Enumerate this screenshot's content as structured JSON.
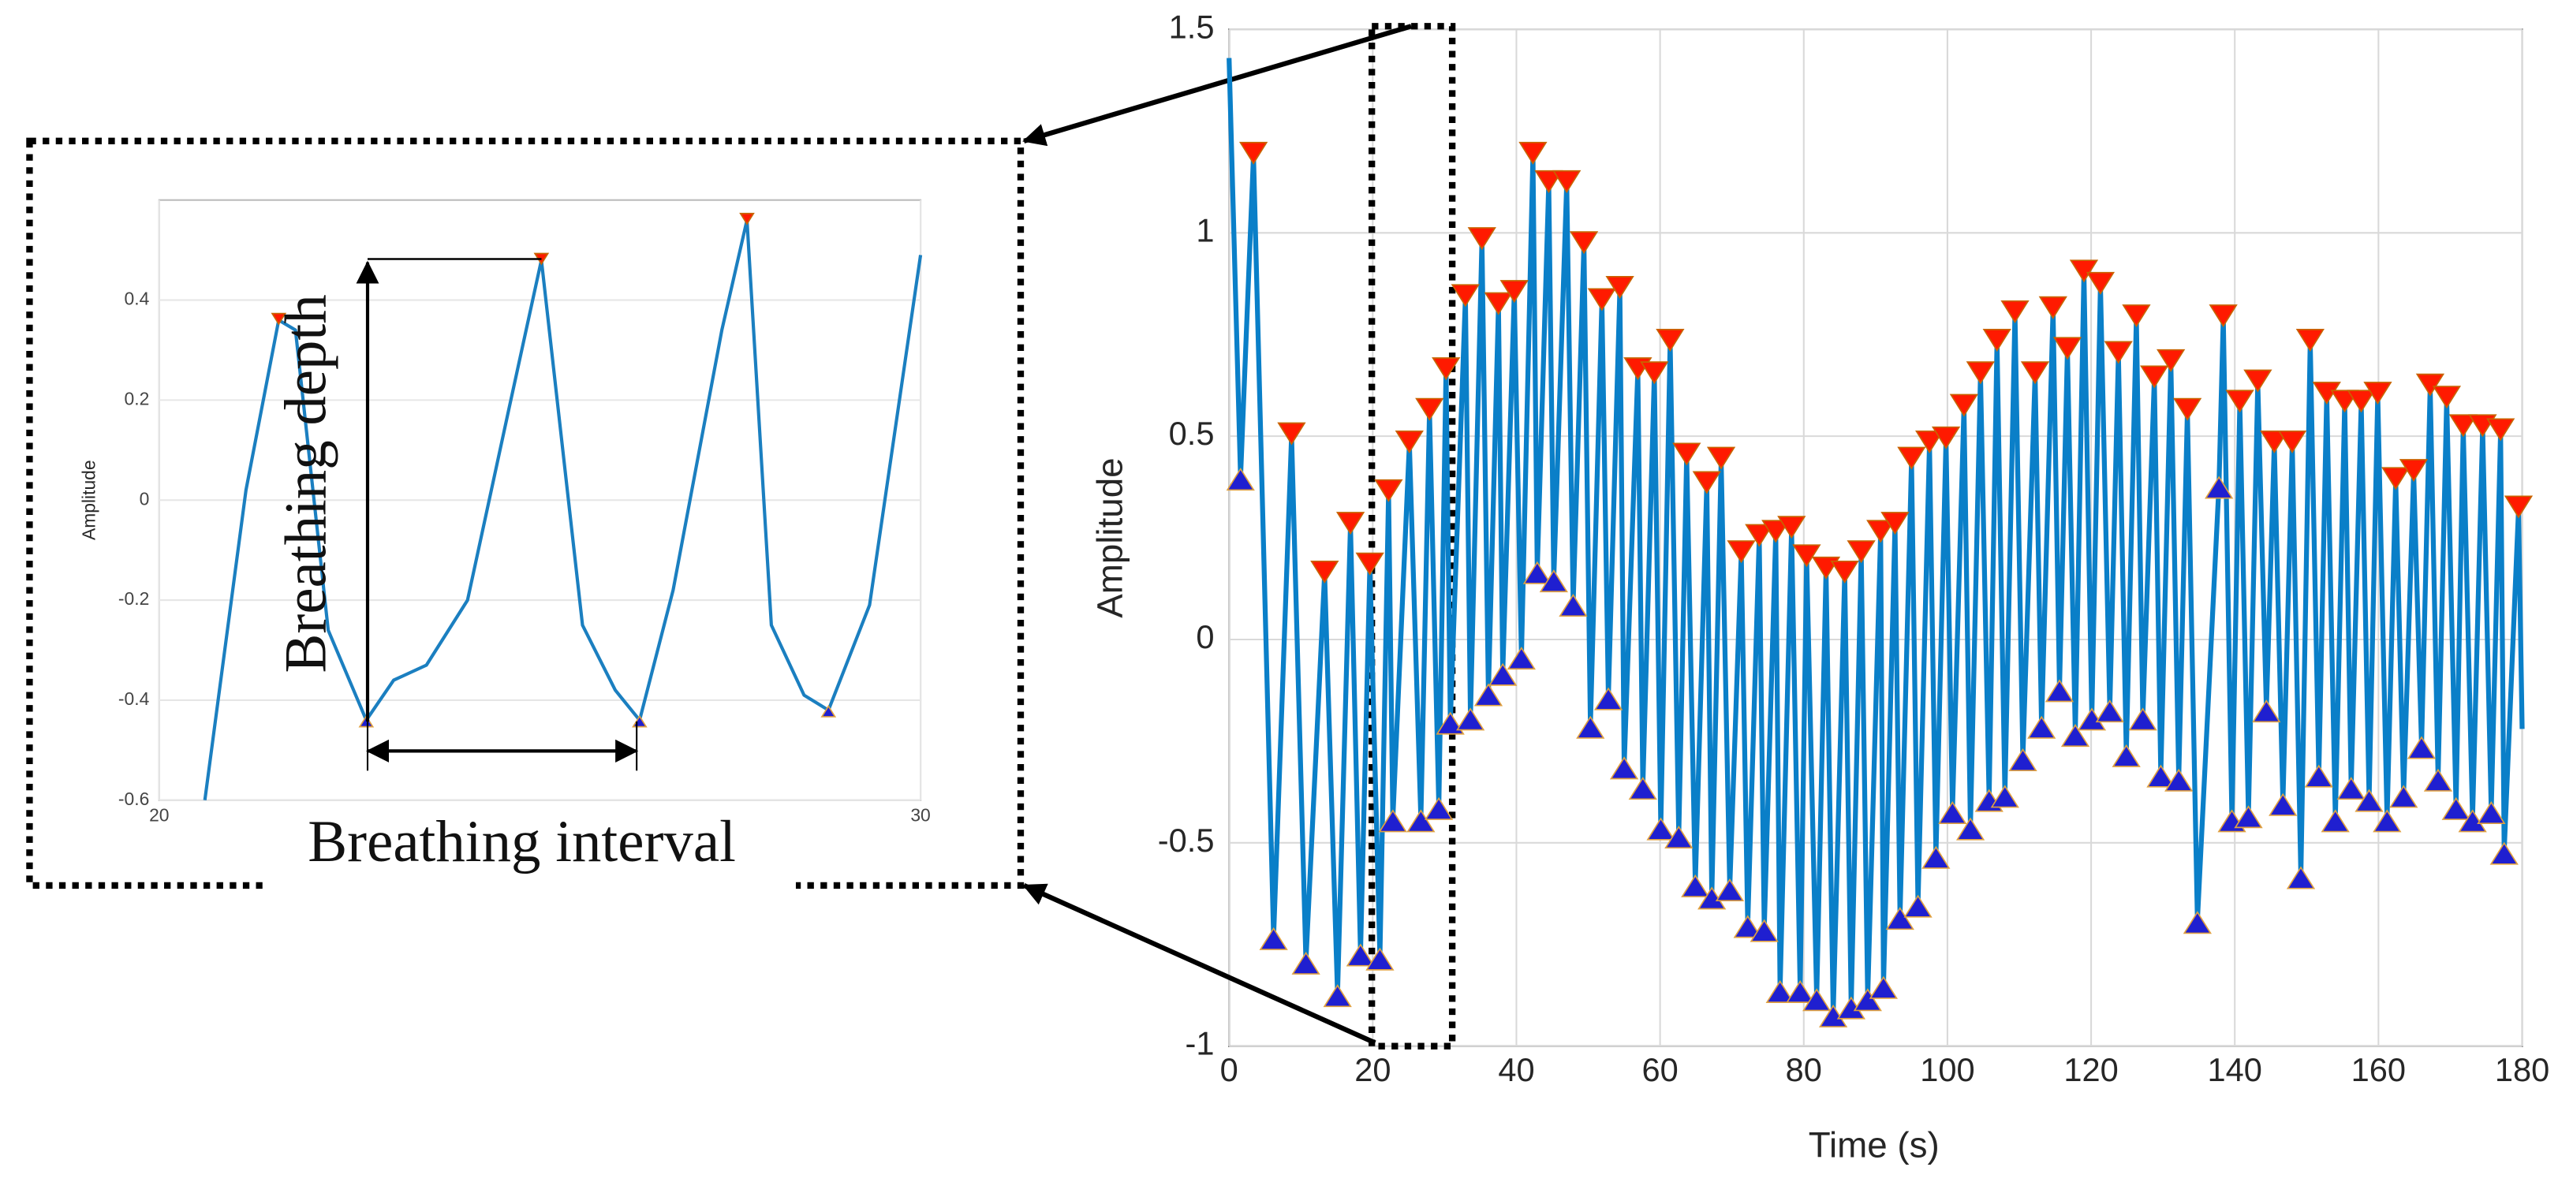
{
  "chart_data": [
    {
      "type": "line",
      "xlabel": "Time (s)",
      "ylabel": "Amplitude",
      "xlim": [
        0,
        180
      ],
      "ylim": [
        -1,
        1.5
      ],
      "xticks": [
        0,
        20,
        40,
        60,
        80,
        100,
        120,
        140,
        160,
        180
      ],
      "yticks": [
        -1,
        -0.5,
        0,
        0.5,
        1,
        1.5
      ],
      "grid": true,
      "series": [
        {
          "color": "#0a7fc8",
          "x": [
            0,
            1.6,
            3.4,
            6.2,
            8.7,
            10.7,
            13.3,
            15.1,
            16.9,
            18.3,
            19.6,
            21.0,
            22.2,
            22.8,
            25.1,
            26.7,
            27.9,
            29.2,
            30.2,
            30.8,
            32.9,
            33.6,
            35.2,
            36.1,
            37.5,
            38.1,
            39.7,
            40.7,
            42.3,
            42.9,
            44.5,
            45.2,
            47.0,
            47.9,
            49.4,
            50.3,
            51.9,
            52.8,
            54.4,
            55.0,
            56.9,
            57.6,
            59.2,
            60.1,
            61.4,
            62.6,
            63.7,
            64.9,
            66.5,
            67.2,
            68.5,
            69.7,
            71.3,
            72.2,
            73.8,
            74.5,
            76.1,
            76.7,
            78.3,
            79.5,
            80.4,
            81.8,
            83.1,
            84.1,
            85.7,
            86.6,
            88.0,
            88.9,
            90.7,
            91.1,
            92.7,
            93.4,
            95.0,
            95.9,
            97.5,
            98.4,
            99.8,
            100.7,
            102.3,
            103.2,
            104.6,
            105.8,
            106.9,
            108.0,
            109.4,
            110.5,
            112.2,
            113.1,
            114.7,
            115.6,
            116.7,
            117.8,
            119.0,
            120.1,
            121.3,
            122.6,
            123.8,
            124.9,
            126.3,
            127.2,
            128.8,
            129.7,
            131.1,
            132.2,
            133.4,
            134.8,
            137.8,
            138.4,
            139.6,
            140.7,
            141.9,
            143.2,
            144.4,
            145.5,
            146.7,
            148.0,
            149.2,
            150.5,
            151.7,
            152.8,
            154.0,
            155.3,
            156.2,
            157.6,
            158.7,
            159.9,
            161.2,
            162.4,
            163.5,
            164.9,
            166.0,
            167.2,
            168.3,
            169.5,
            170.8,
            171.8,
            173.1,
            174.5,
            175.7,
            177.0,
            177.5,
            179.5,
            180
          ],
          "values": [
            1.43,
            0.4,
            1.19,
            -0.73,
            0.5,
            -0.79,
            0.16,
            -0.87,
            0.28,
            -0.77,
            0.18,
            -0.78,
            0.36,
            -0.44,
            0.48,
            -0.44,
            0.56,
            -0.41,
            0.66,
            -0.2,
            0.84,
            -0.19,
            0.98,
            -0.13,
            0.82,
            -0.08,
            0.85,
            -0.04,
            1.19,
            0.17,
            1.12,
            0.15,
            1.12,
            0.09,
            0.97,
            -0.21,
            0.83,
            -0.14,
            0.86,
            -0.31,
            0.66,
            -0.36,
            0.65,
            -0.46,
            0.73,
            -0.48,
            0.45,
            -0.6,
            0.38,
            -0.63,
            0.44,
            -0.61,
            0.21,
            -0.7,
            0.25,
            -0.71,
            0.26,
            -0.86,
            0.27,
            -0.86,
            0.2,
            -0.88,
            0.17,
            -0.92,
            0.16,
            -0.9,
            0.21,
            -0.88,
            0.26,
            -0.85,
            0.28,
            -0.68,
            0.44,
            -0.65,
            0.48,
            -0.53,
            0.49,
            -0.42,
            0.57,
            -0.46,
            0.65,
            -0.39,
            0.73,
            -0.38,
            0.8,
            -0.29,
            0.65,
            -0.21,
            0.81,
            -0.12,
            0.71,
            -0.23,
            0.9,
            -0.19,
            0.87,
            -0.17,
            0.7,
            -0.28,
            0.79,
            -0.19,
            0.64,
            -0.33,
            0.68,
            -0.34,
            0.56,
            -0.69,
            0.38,
            0.79,
            -0.44,
            0.58,
            -0.43,
            0.63,
            -0.17,
            0.48,
            -0.4,
            0.48,
            -0.58,
            0.73,
            -0.33,
            0.6,
            -0.44,
            0.58,
            -0.36,
            0.58,
            -0.39,
            0.6,
            -0.44,
            0.39,
            -0.38,
            0.41,
            -0.26,
            0.62,
            -0.34,
            0.59,
            -0.41,
            0.52,
            -0.44,
            0.52,
            -0.42,
            0.51,
            -0.52,
            0.32,
            -0.22
          ]
        },
        {
          "marker": "triangle-down",
          "color": "#ff1a00",
          "x": [
            3.4,
            8.7,
            13.3,
            16.9,
            19.6,
            22.2,
            25.1,
            27.9,
            30.2,
            32.9,
            35.2,
            37.5,
            39.7,
            42.3,
            44.5,
            47.0,
            49.4,
            51.9,
            54.4,
            56.9,
            59.2,
            61.4,
            63.7,
            66.5,
            68.5,
            71.3,
            73.8,
            76.1,
            78.3,
            80.4,
            83.1,
            85.7,
            88.0,
            90.7,
            92.7,
            95.0,
            97.5,
            99.8,
            102.3,
            104.6,
            106.9,
            109.4,
            112.2,
            114.7,
            116.7,
            119.0,
            121.3,
            123.8,
            126.3,
            128.8,
            131.1,
            133.4,
            138.4,
            140.7,
            143.2,
            145.5,
            148.0,
            150.5,
            152.8,
            155.3,
            157.6,
            159.9,
            162.4,
            164.9,
            167.2,
            169.5,
            171.8,
            174.5,
            177.0,
            179.5
          ],
          "values": [
            1.19,
            0.5,
            0.16,
            0.28,
            0.18,
            0.36,
            0.48,
            0.56,
            0.66,
            0.84,
            0.98,
            0.82,
            0.85,
            1.19,
            1.12,
            1.12,
            0.97,
            0.83,
            0.86,
            0.66,
            0.65,
            0.73,
            0.45,
            0.38,
            0.44,
            0.21,
            0.25,
            0.26,
            0.27,
            0.2,
            0.17,
            0.16,
            0.21,
            0.26,
            0.28,
            0.44,
            0.48,
            0.49,
            0.57,
            0.65,
            0.73,
            0.8,
            0.65,
            0.81,
            0.71,
            0.9,
            0.87,
            0.7,
            0.79,
            0.64,
            0.68,
            0.56,
            0.79,
            0.58,
            0.63,
            0.48,
            0.48,
            0.73,
            0.6,
            0.58,
            0.58,
            0.6,
            0.39,
            0.41,
            0.62,
            0.59,
            0.52,
            0.52,
            0.51,
            0.32
          ]
        },
        {
          "marker": "triangle-up",
          "color": "#1f1fd0",
          "x": [
            1.6,
            6.2,
            10.7,
            15.1,
            18.3,
            21.0,
            22.8,
            26.7,
            29.2,
            30.8,
            33.6,
            36.1,
            38.1,
            40.7,
            42.9,
            45.2,
            47.9,
            50.3,
            52.8,
            55.0,
            57.6,
            60.1,
            62.6,
            64.9,
            67.2,
            69.7,
            72.2,
            74.5,
            76.7,
            79.5,
            81.8,
            84.1,
            86.6,
            88.9,
            91.1,
            93.4,
            95.9,
            98.4,
            100.7,
            103.2,
            105.8,
            108.0,
            110.5,
            113.1,
            115.6,
            117.8,
            120.1,
            122.6,
            124.9,
            127.2,
            129.7,
            132.2,
            134.8,
            137.8,
            139.6,
            141.9,
            144.4,
            146.7,
            149.2,
            151.7,
            154.0,
            156.2,
            158.7,
            161.2,
            163.5,
            166.0,
            168.3,
            170.8,
            173.1,
            175.7,
            177.5
          ],
          "values": [
            0.4,
            -0.73,
            -0.79,
            -0.87,
            -0.77,
            -0.78,
            -0.44,
            -0.44,
            -0.41,
            -0.2,
            -0.19,
            -0.13,
            -0.08,
            -0.04,
            0.17,
            0.15,
            0.09,
            -0.21,
            -0.14,
            -0.31,
            -0.36,
            -0.46,
            -0.48,
            -0.6,
            -0.63,
            -0.61,
            -0.7,
            -0.71,
            -0.86,
            -0.86,
            -0.88,
            -0.92,
            -0.9,
            -0.88,
            -0.85,
            -0.68,
            -0.65,
            -0.53,
            -0.42,
            -0.46,
            -0.39,
            -0.38,
            -0.29,
            -0.21,
            -0.12,
            -0.23,
            -0.19,
            -0.17,
            -0.28,
            -0.19,
            -0.33,
            -0.34,
            -0.69,
            0.38,
            -0.44,
            -0.43,
            -0.17,
            -0.4,
            -0.58,
            -0.33,
            -0.44,
            -0.36,
            -0.39,
            -0.44,
            -0.38,
            -0.26,
            -0.34,
            -0.41,
            -0.44,
            -0.42,
            -0.52
          ]
        }
      ]
    },
    {
      "type": "line",
      "ylabel": "Amplitude",
      "xlim": [
        20,
        30
      ],
      "ylim": [
        -0.6,
        0.6
      ],
      "xticks": [
        20,
        30
      ],
      "yticks": [
        -0.6,
        -0.4,
        -0.2,
        0,
        0.2,
        0.4
      ],
      "grid": true,
      "annotations": [
        "Breathing depth",
        "Breathing interval"
      ],
      "series": [
        {
          "color": "#1b7fc0",
          "x": [
            20.6,
            21.14,
            21.57,
            21.79,
            22.22,
            22.72,
            23.08,
            23.51,
            24.05,
            24.59,
            25.02,
            25.56,
            25.99,
            26.31,
            26.75,
            27.39,
            27.72,
            28.04,
            28.47,
            28.79,
            29.33,
            30
          ],
          "values": [
            -0.6,
            0.02,
            0.36,
            0.34,
            -0.26,
            -0.44,
            -0.36,
            -0.33,
            -0.2,
            0.18,
            0.48,
            -0.25,
            -0.38,
            -0.44,
            -0.18,
            0.34,
            0.56,
            -0.25,
            -0.39,
            -0.42,
            -0.21,
            0.49
          ]
        },
        {
          "marker": "triangle-down",
          "color": "#ff1a00",
          "x": [
            21.57,
            25.02,
            27.72
          ],
          "values": [
            0.36,
            0.48,
            0.56
          ]
        },
        {
          "marker": "triangle-up",
          "color": "#1f1fd0",
          "x": [
            22.72,
            26.31,
            28.79
          ],
          "values": [
            -0.44,
            -0.44,
            -0.42
          ]
        }
      ]
    }
  ]
}
